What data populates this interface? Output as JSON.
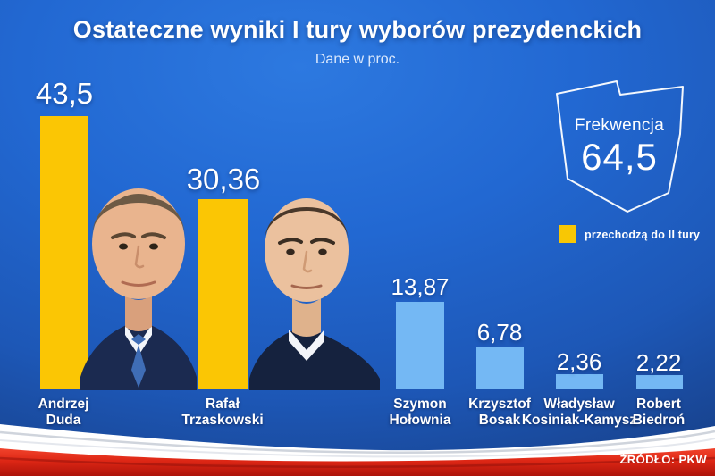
{
  "header": {
    "title": "Ostateczne wyniki I tury wyborów prezydenckich",
    "subtitle": "Dane w proc."
  },
  "turnout": {
    "label": "Frekwencja",
    "value": "64,5"
  },
  "legend": {
    "label": "przechodzą do II tury",
    "swatch_color": "#F8C704"
  },
  "source_label": "ŹRÓDŁO: PKW",
  "colors": {
    "finalist_bar": "#FBC604",
    "other_bar": "#74B8F4",
    "background_blue": "#2068D0",
    "flag_red": "#DD2312",
    "flag_white": "#FFFFFF"
  },
  "candidates": [
    {
      "first_name": "Andrzej",
      "last_name": "Duda",
      "value_label": "43,5",
      "value": 43.5,
      "advances_to_round_2": true
    },
    {
      "first_name": "Rafał",
      "last_name": "Trzaskowski",
      "value_label": "30,36",
      "value": 30.36,
      "advances_to_round_2": true
    },
    {
      "first_name": "Szymon",
      "last_name": "Hołownia",
      "value_label": "13,87",
      "value": 13.87,
      "advances_to_round_2": false
    },
    {
      "first_name": "Krzysztof",
      "last_name": "Bosak",
      "value_label": "6,78",
      "value": 6.78,
      "advances_to_round_2": false
    },
    {
      "first_name": "Władysław",
      "last_name": "Kosiniak-Kamysz",
      "value_label": "2,36",
      "value": 2.36,
      "advances_to_round_2": false
    },
    {
      "first_name": "Robert",
      "last_name": "Biedroń",
      "value_label": "2,22",
      "value": 2.22,
      "advances_to_round_2": false
    }
  ],
  "chart_data": {
    "type": "bar",
    "title": "Ostateczne wyniki I tury wyborów prezydenckich",
    "subtitle": "Dane w proc.",
    "unit": "%",
    "categories": [
      "Andrzej Duda",
      "Rafał Trzaskowski",
      "Szymon Hołownia",
      "Krzysztof Bosak",
      "Władysław Kosiniak-Kamysz",
      "Robert Biedroń"
    ],
    "values": [
      43.5,
      30.36,
      13.87,
      6.78,
      2.36,
      2.22
    ],
    "value_labels": [
      "43,5",
      "30,36",
      "13,87",
      "6,78",
      "2,36",
      "2,22"
    ],
    "bar_colors": [
      "#FBC604",
      "#FBC604",
      "#74B8F4",
      "#74B8F4",
      "#74B8F4",
      "#74B8F4"
    ],
    "ylim": [
      0,
      50
    ],
    "grid": false,
    "xlabel": "",
    "ylabel": "",
    "legend_position": "right",
    "annotations": {
      "turnout_label": "Frekwencja",
      "turnout_value": 64.5,
      "highlight_legend": "przechodzą do II tury",
      "source": "ŹRÓDŁO: PKW"
    }
  }
}
